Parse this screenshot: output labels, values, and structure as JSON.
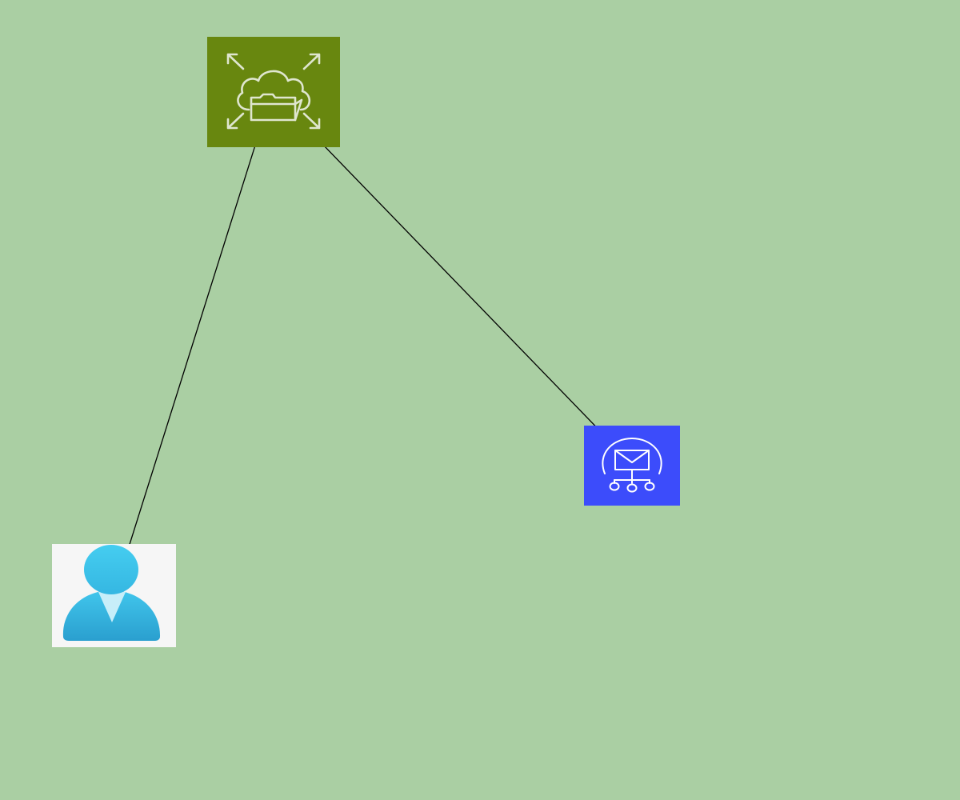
{
  "colors": {
    "background": "#aacfa3",
    "cloud_tile": "#68870f",
    "cloud_glyph": "#dfe6cf",
    "messaging_tile": "#3c4cfb",
    "messaging_glyph": "#ffffff",
    "user_tile": "#f6f6f6",
    "user_head": "#41c6ec",
    "user_body": "#2fa9d7",
    "user_collar": "#c7eef9",
    "edge": "#000000"
  },
  "nodes": [
    {
      "id": "cloud",
      "icon": "cloud-expand-icon",
      "label": ""
    },
    {
      "id": "messaging",
      "icon": "messaging-hub-icon",
      "label": ""
    },
    {
      "id": "user",
      "icon": "user-icon",
      "label": ""
    }
  ],
  "edges": [
    {
      "from": "user",
      "to": "cloud",
      "arrow": "end"
    },
    {
      "from": "cloud",
      "to": "messaging",
      "arrow": "both"
    }
  ]
}
